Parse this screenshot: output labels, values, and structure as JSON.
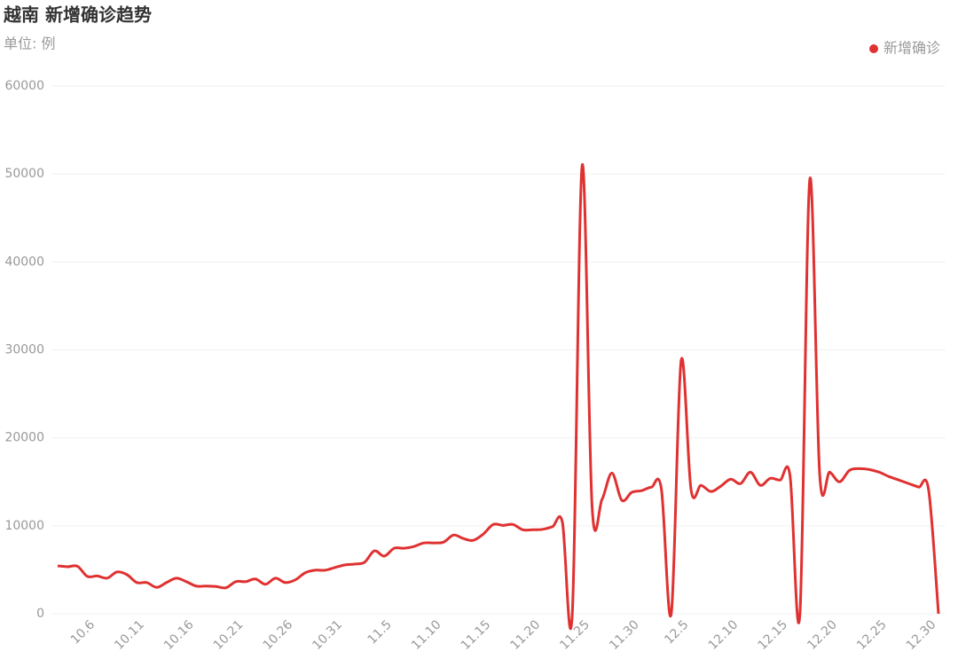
{
  "chart_data": {
    "type": "line",
    "title": "越南 新增确诊趋势",
    "subtitle": "单位: 例",
    "categories": [
      null,
      null,
      null,
      "10.6",
      null,
      null,
      null,
      null,
      "10.11",
      null,
      null,
      null,
      null,
      "10.16",
      null,
      null,
      null,
      null,
      "10.21",
      null,
      null,
      null,
      null,
      "10.26",
      null,
      null,
      null,
      null,
      "10.31",
      null,
      null,
      null,
      null,
      "11.5",
      null,
      null,
      null,
      null,
      "11.10",
      null,
      null,
      null,
      null,
      "11.15",
      null,
      null,
      null,
      null,
      "11.20",
      null,
      null,
      null,
      null,
      "11.25",
      null,
      null,
      null,
      null,
      "11.30",
      null,
      null,
      null,
      null,
      "12.5",
      null,
      null,
      null,
      null,
      "12.10",
      null,
      null,
      null,
      null,
      "12.15",
      null,
      null,
      null,
      null,
      "12.20",
      null,
      null,
      null,
      null,
      "12.25",
      null,
      null,
      null,
      null,
      "12.30",
      null
    ],
    "series": [
      {
        "name": "新增确诊",
        "color": "#e03131",
        "values": [
          5450,
          5350,
          5400,
          4250,
          4300,
          4050,
          4750,
          4450,
          3550,
          3550,
          3000,
          3550,
          4050,
          3650,
          3150,
          3150,
          3100,
          2950,
          3650,
          3650,
          3950,
          3350,
          4050,
          3550,
          3850,
          4650,
          4950,
          4950,
          5250,
          5550,
          5650,
          5850,
          7150,
          6550,
          7450,
          7450,
          7650,
          8050,
          8050,
          8150,
          8950,
          8550,
          8350,
          9050,
          10150,
          10050,
          10150,
          9550,
          9550,
          9600,
          9900,
          10400,
          0,
          51000,
          12200,
          13000,
          16000,
          12900,
          13800,
          14000,
          14400,
          14200,
          0,
          28800,
          14100,
          14600,
          13900,
          14500,
          15300,
          14800,
          16100,
          14600,
          15400,
          15200,
          15700,
          0,
          49400,
          15800,
          16100,
          15000,
          16300,
          16500,
          16400,
          16100,
          15600,
          15200,
          14800,
          14400,
          14100,
          0
        ]
      }
    ],
    "ylim": [
      0,
      60000
    ],
    "yticks": [
      0,
      10000,
      20000,
      30000,
      40000,
      50000,
      60000
    ],
    "grid": true,
    "legend": "top-right"
  }
}
